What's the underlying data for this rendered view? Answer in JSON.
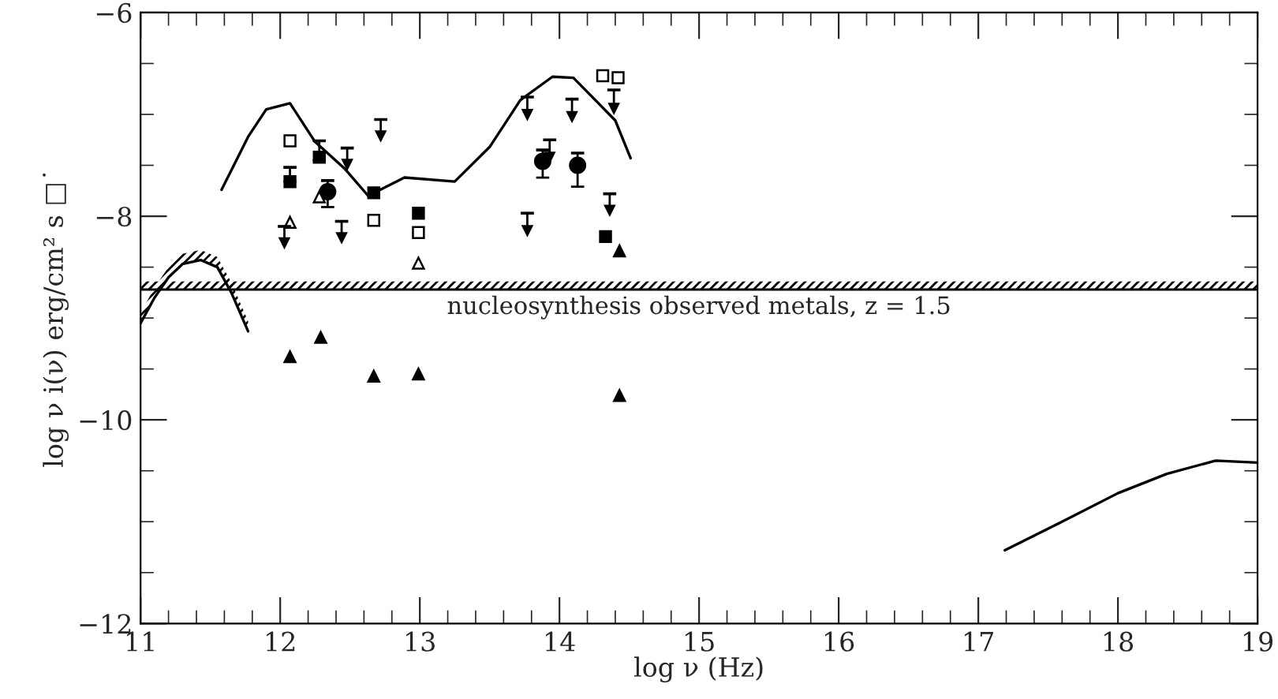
{
  "chart_data": {
    "type": "scatter",
    "xlabel": "log ν (Hz)",
    "ylabel": "log ν i(ν) erg/cm² s □˙",
    "xlim": [
      11,
      19
    ],
    "ylim": [
      -12,
      -6
    ],
    "xticks": [
      11,
      {
        "value": 11.2,
        "label": null
      },
      {
        "value": 11.4,
        "label": null
      },
      {
        "value": 11.6,
        "label": null
      },
      {
        "value": 11.8,
        "label": null
      },
      12,
      {
        "value": 12.2,
        "label": null
      },
      {
        "value": 12.4,
        "label": null
      },
      {
        "value": 12.6,
        "label": null
      },
      {
        "value": 12.8,
        "label": null
      },
      13,
      {
        "value": 13.2,
        "label": null
      },
      {
        "value": 13.4,
        "label": null
      },
      {
        "value": 13.6,
        "label": null
      },
      {
        "value": 13.8,
        "label": null
      },
      14,
      {
        "value": 14.2,
        "label": null
      },
      {
        "value": 14.4,
        "label": null
      },
      {
        "value": 14.6,
        "label": null
      },
      {
        "value": 14.8,
        "label": null
      },
      15,
      {
        "value": 15.2,
        "label": null
      },
      {
        "value": 15.4,
        "label": null
      },
      {
        "value": 15.6,
        "label": null
      },
      {
        "value": 15.8,
        "label": null
      },
      16,
      {
        "value": 16.2,
        "label": null
      },
      {
        "value": 16.4,
        "label": null
      },
      {
        "value": 16.6,
        "label": null
      },
      {
        "value": 16.8,
        "label": null
      },
      17,
      {
        "value": 17.2,
        "label": null
      },
      {
        "value": 17.4,
        "label": null
      },
      {
        "value": 17.6,
        "label": null
      },
      {
        "value": 17.8,
        "label": null
      },
      18,
      {
        "value": 18.2,
        "label": null
      },
      {
        "value": 18.4,
        "label": null
      },
      {
        "value": 18.6,
        "label": null
      },
      {
        "value": 18.8,
        "label": null
      },
      19
    ],
    "yticks": [
      -12,
      {
        "value": -11.5,
        "label": null
      },
      {
        "value": -11,
        "label": null
      },
      {
        "value": -10.5,
        "label": null
      },
      -10,
      {
        "value": -9.5,
        "label": null
      },
      {
        "value": -9,
        "label": null
      },
      {
        "value": -8.5,
        "label": null
      },
      -8,
      {
        "value": -7.5,
        "label": null
      },
      {
        "value": -7,
        "label": null
      },
      {
        "value": -6.5,
        "label": null
      },
      -6
    ],
    "bands": [
      {
        "axis": "y",
        "from": -8.72,
        "to": -8.64,
        "color": "#000000"
      }
    ],
    "ref_lines": [
      {
        "axis": "y",
        "value": -8.72,
        "color": "#000000"
      }
    ],
    "annotations": [
      "nucleosynthesis observed metals, z = 1.5"
    ],
    "series": [
      {
        "type": "line",
        "color": "#000000",
        "line_style": "solid",
        "x": [
          11.58,
          11.77,
          11.9,
          12.07,
          12.25,
          12.46,
          12.63,
          12.89,
          13.25,
          13.5,
          13.72,
          13.95,
          14.1,
          14.4,
          14.51
        ],
        "values": [
          -7.74,
          -7.22,
          -6.95,
          -6.89,
          -7.27,
          -7.53,
          -7.8,
          -7.62,
          -7.66,
          -7.32,
          -6.86,
          -6.63,
          -6.64,
          -7.06,
          -7.43
        ]
      },
      {
        "type": "line",
        "color": "#000000",
        "line_style": "solid",
        "x": [
          11.0,
          11.1,
          11.2,
          11.3,
          11.43,
          11.55,
          11.65,
          11.77
        ],
        "values": [
          -9.05,
          -8.8,
          -8.6,
          -8.47,
          -8.43,
          -8.5,
          -8.75,
          -9.13
        ],
        "lower": [
          -9.05,
          -8.8,
          -8.6,
          -8.47,
          -8.43,
          -8.5,
          -8.75,
          -9.13
        ],
        "upper": [
          -8.95,
          -8.7,
          -8.5,
          -8.37,
          -8.33,
          -8.4,
          -8.65,
          -9.03
        ]
      },
      {
        "type": "line",
        "color": "#000000",
        "line_style": "solid",
        "x": [
          17.19,
          17.6,
          18.0,
          18.35,
          18.7,
          19.0
        ],
        "values": [
          -11.28,
          -11.0,
          -10.72,
          -10.53,
          -10.4,
          -10.42
        ]
      },
      {
        "marker": "square",
        "color": "#ffffff",
        "x": [
          12.07,
          12.67,
          12.99,
          14.31,
          14.42
        ],
        "values": [
          -7.26,
          -8.04,
          -8.16,
          -6.62,
          -6.64
        ]
      },
      {
        "marker": "square",
        "color": "#000000",
        "x": [
          12.07,
          12.28,
          12.67,
          12.99,
          14.33
        ],
        "values": [
          -7.66,
          -7.42,
          -7.77,
          -7.97,
          -8.2
        ],
        "errors": [
          [
            -7.66,
            -7.52
          ],
          [
            -7.45,
            -7.26
          ],
          null,
          null,
          null
        ]
      },
      {
        "marker": "circle",
        "color": "#000000",
        "x": [
          12.34,
          13.88,
          14.13
        ],
        "values": [
          -7.76,
          -7.46,
          -7.5
        ],
        "errors": [
          [
            -7.91,
            -7.65
          ],
          [
            -7.62,
            -7.35
          ],
          [
            -7.71,
            -7.38
          ]
        ]
      },
      {
        "marker": "triangle",
        "color": "#ffffff",
        "x": [
          12.07,
          12.28,
          12.99
        ],
        "values": [
          -8.06,
          -7.81,
          -8.46
        ]
      },
      {
        "marker": "triangle",
        "color": "#000000",
        "x": [
          12.07,
          12.29,
          12.67,
          12.99,
          14.43,
          14.43
        ],
        "values": [
          -9.38,
          -9.19,
          -9.57,
          -9.55,
          -8.34,
          -9.76
        ]
      },
      {
        "marker": "triangle",
        "color": "#000000",
        "x": [
          12.03,
          12.44,
          12.48,
          12.72,
          13.77,
          13.77,
          13.93,
          14.09,
          14.36,
          14.39
        ],
        "values": [
          -8.26,
          -8.21,
          -7.49,
          -7.21,
          -7.0,
          -8.14,
          -7.42,
          -7.02,
          -7.94,
          -6.94
        ],
        "errors": [
          [
            -8.26,
            -8.1
          ],
          [
            -8.21,
            -8.05
          ],
          [
            -7.49,
            -7.33
          ],
          [
            -7.21,
            -7.05
          ],
          [
            -7.0,
            -6.83
          ],
          [
            -8.14,
            -7.97
          ],
          [
            -7.42,
            -7.25
          ],
          [
            -7.02,
            -6.85
          ],
          [
            -7.94,
            -7.78
          ],
          [
            -6.94,
            -6.76
          ]
        ]
      }
    ]
  }
}
